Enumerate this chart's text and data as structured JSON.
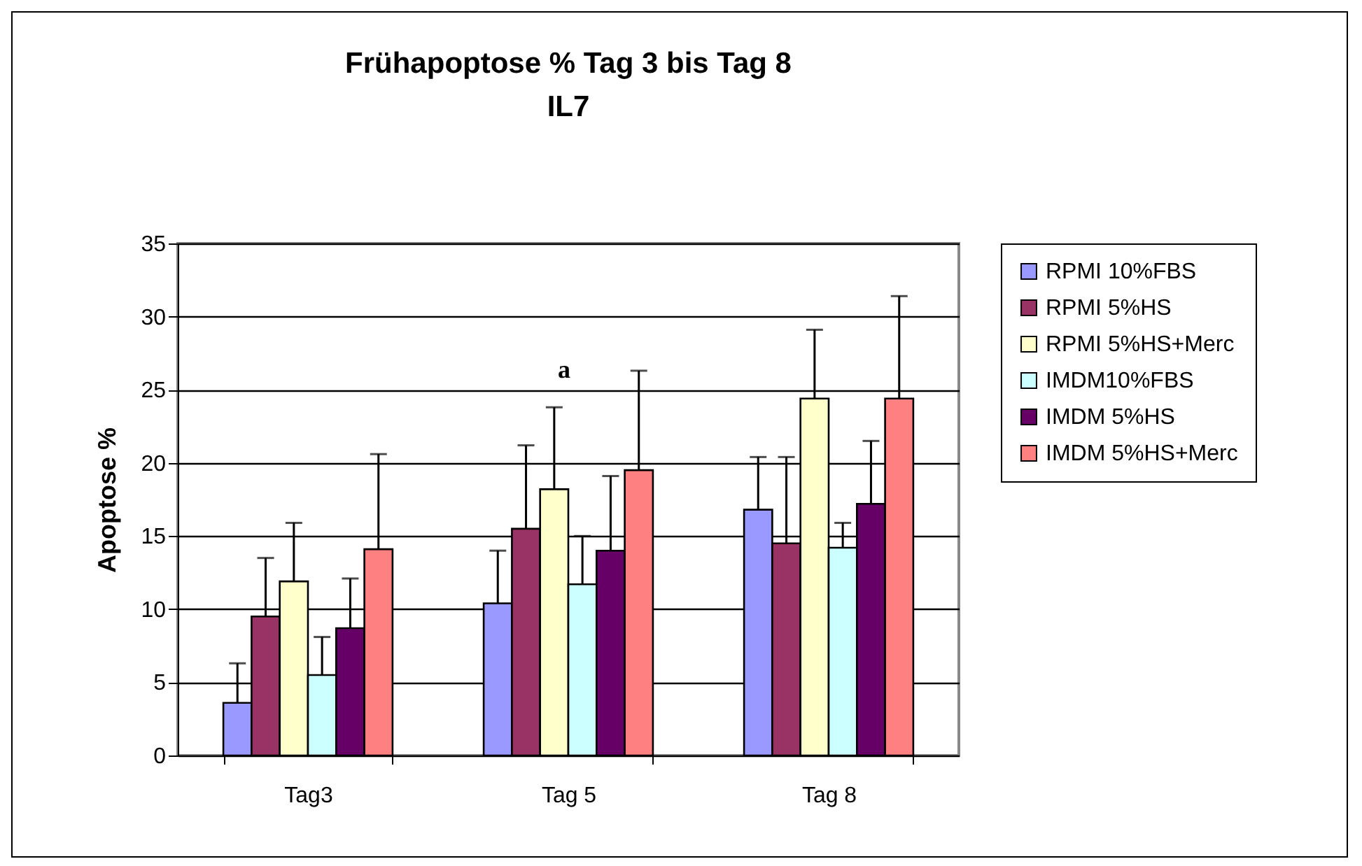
{
  "chart_data": {
    "type": "bar",
    "title": "Frühapoptose % Tag 3 bis Tag 8",
    "subtitle": "IL7",
    "ylabel": "Apoptose %",
    "categories": [
      "Tag3",
      "Tag 5",
      "Tag 8"
    ],
    "series": [
      {
        "name": "RPMI 10%FBS",
        "color": "#9999ff",
        "values": [
          3.6,
          10.4,
          16.8
        ],
        "errors": [
          [
            3.6,
            6.3
          ],
          [
            10.4,
            14.0
          ],
          [
            16.8,
            20.4
          ]
        ]
      },
      {
        "name": "RPMI 5%HS",
        "color": "#993366",
        "values": [
          9.5,
          15.5,
          14.5
        ],
        "errors": [
          [
            9.5,
            13.5
          ],
          [
            15.5,
            21.2
          ],
          [
            14.5,
            20.4
          ]
        ]
      },
      {
        "name": "RPMI 5%HS+Merc",
        "color": "#ffffcc",
        "values": [
          11.9,
          18.2,
          24.4
        ],
        "errors": [
          [
            11.9,
            15.9
          ],
          [
            18.2,
            23.8
          ],
          [
            24.4,
            29.1
          ]
        ]
      },
      {
        "name": "IMDM10%FBS",
        "color": "#ccffff",
        "values": [
          5.5,
          11.7,
          14.2
        ],
        "errors": [
          [
            5.5,
            8.1
          ],
          [
            11.7,
            15.0
          ],
          [
            14.2,
            15.9
          ]
        ]
      },
      {
        "name": "IMDM 5%HS",
        "color": "#660066",
        "values": [
          8.7,
          14.0,
          17.2
        ],
        "errors": [
          [
            8.7,
            12.1
          ],
          [
            14.0,
            19.1
          ],
          [
            17.2,
            21.5
          ]
        ]
      },
      {
        "name": "IMDM 5%HS+Merc",
        "color": "#ff8080",
        "values": [
          14.1,
          19.5,
          24.4
        ],
        "errors": [
          [
            14.1,
            20.6
          ],
          [
            19.5,
            26.3
          ],
          [
            24.4,
            31.4
          ]
        ]
      }
    ],
    "annotations": [
      "a"
    ],
    "ylim": [
      0,
      35
    ],
    "yticks": [
      0,
      5,
      10,
      15,
      20,
      25,
      30,
      35
    ],
    "grid": "y",
    "legend": "right"
  }
}
